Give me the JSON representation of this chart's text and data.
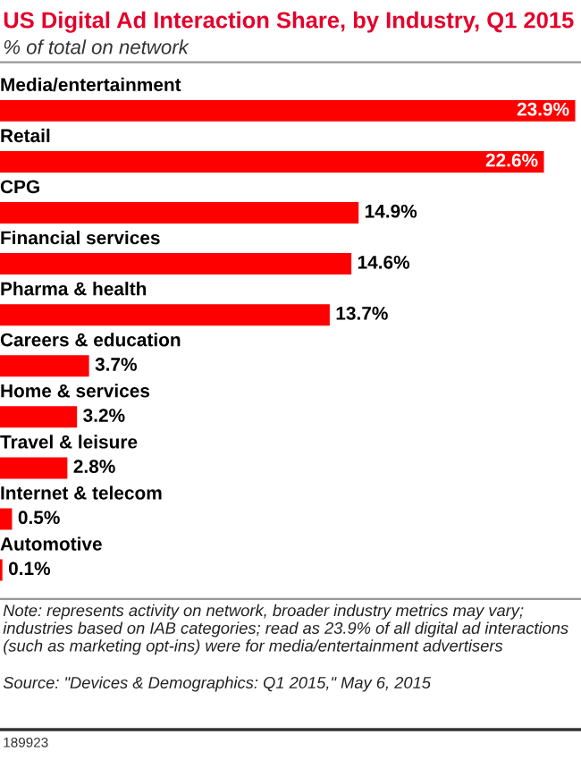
{
  "chart_data": {
    "type": "bar",
    "orientation": "horizontal",
    "title": "US Digital Ad Interaction Share, by Industry, Q1 2015",
    "subtitle": "% of total on network",
    "categories": [
      "Media/entertainment",
      "Retail",
      "CPG",
      "Financial services",
      "Pharma & health",
      "Careers & education",
      "Home & services",
      "Travel & leisure",
      "Internet & telecom",
      "Automotive"
    ],
    "values": [
      23.9,
      22.6,
      14.9,
      14.6,
      13.7,
      3.7,
      3.2,
      2.8,
      0.5,
      0.1
    ],
    "value_labels": [
      "23.9%",
      "22.6%",
      "14.9%",
      "14.6%",
      "13.7%",
      "3.7%",
      "3.2%",
      "2.8%",
      "0.5%",
      "0.1%"
    ],
    "color": "#ff0000",
    "annotations": [
      "Note: represents activity on network, broader industry metrics may vary; industries based on IAB categories; read as 23.9% of all digital ad interactions (such as marketing opt-ins) were for media/entertainment advertisers",
      "Source: \"Devices & Demographics: Q1 2015,\" May 6, 2015",
      "189923"
    ]
  }
}
